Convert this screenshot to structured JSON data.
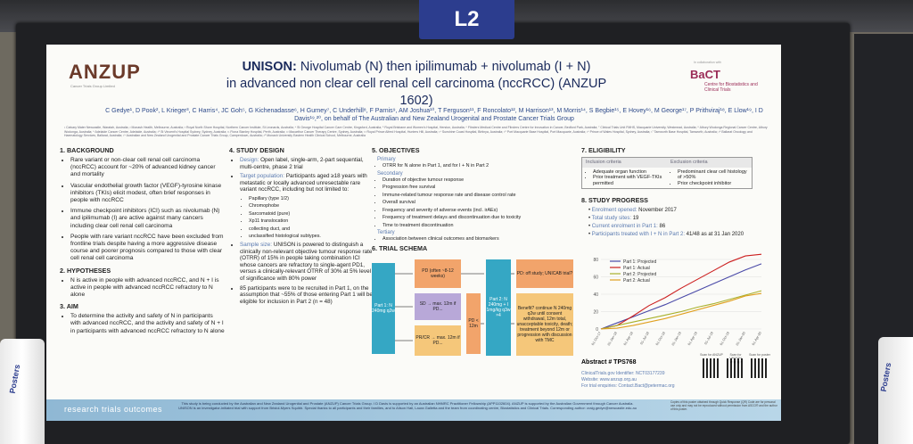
{
  "sign": "L2",
  "poster": {
    "logo_left": "ANZUP",
    "logo_left_sub": "Cancer Trials Group Limited",
    "logo_right": "BaCT",
    "logo_right_top": "In collaboration with",
    "logo_right_sub": "Centre for Biostatistics and Clinical Trials",
    "title_bold": "UNISON:",
    "title_line1": "Nivolumab (N) then ipilimumab + nivolumab (I + N)",
    "title_line2": "in advanced non clear cell renal cell carcinoma (nccRCC) (ANZUP 1602)",
    "authors": "C Gedye¹, D Pook², L Krieger³, C Harris⁴, JC Goh⁵, G Kichenadasse⁶, H Gurney⁷, C Underhill⁸, F Parnis⁹, AM Joshua¹⁰, T Ferguson¹¹, F Roncolato¹², M Harrison¹³, M Morris¹⁴, S Begbie¹⁵, E Hovey¹⁶, M George¹⁷, P Prithviraj¹⁸, E Llow¹⁹, I D Davis¹⁹,²⁰, on behalf of The Australian and New Zealand Urogenital and Prostate Cancer Trials Group",
    "affiliations": "¹ Calvary Mater Newcastle, Waratah, Australia; ² Monash Health, Melbourne, Australia; ³ Royal North Shore Hospital, Northern Cancer Institute, St Leonards, Australia; ⁴ St George Hospital Cancer Care Centre, Kingsford, Australia; ⁵ Royal Brisbane and Women's Hospital, Herston, Australia; ⁶ Flinders Medical Centre and Flinders Centre for Innovation in Cancer, Bedford Park, Australia; ⁷ Clinical Trials Unit FMHS, Macquarie University, Westmead, Australia; ⁸ Albury Wodonga Regional Cancer Centre, Albury Wodonga, Australia; ⁹ Adelaide Cancer Centre, Adelaide, Australia; ¹⁰ St Vincent's Hospital Sydney, Sydney, Australia; ¹¹ Fiona Stanley Hospital, Perth, Australia; ¹² Macarthur Cancer Therapy Centre, Sydney, Australia; ¹³ Royal Prince Alfred Hospital, Hunters Hill, Australia; ¹⁴ Sunshine Coast Hospital, Birtinya, Australia; ¹⁵ Port Macquarie Base Hospital, Port Macquarie, Australia; ¹⁶ Prince of Wales Hospital, Sydney, Australia; ¹⁷ Tamworth Base Hospital, Tamworth, Australia; ¹⁸ Ballarat Oncology and Haematology Services, Ballarat, Australia; ¹⁹ Australian and New Zealand Urogenital and Prostate Cancer Trials Group, Camperdown, Australia; ²⁰ Monash University Eastern Health Clinical School, Melbourne, Australia",
    "background": {
      "heading": "1. BACKGROUND",
      "items": [
        "Rare variant or non-clear cell renal cell carcinoma (nccRCC) account for ~20% of advanced kidney cancer and mortality",
        "Vascular endothelial growth factor (VEGF)-tyrosine kinase inhibitors (TKIs) elicit modest, often brief responses in people with nccRCC",
        "Immune checkpoint inhibitors (ICI) such as nivolumab (N) and ipilimumab (I) are active against many cancers including clear cell renal cell carcinoma",
        "People with rare variant nccRCC have been excluded from frontline trials despite having a more aggressive disease course and poorer prognosis compared to those with clear cell renal cell carcinoma"
      ]
    },
    "hypotheses": {
      "heading": "2. HYPOTHESES",
      "items": [
        "N is active in people with advanced nccRCC, and N + I is active in people with advanced nccRCC refractory to N alone"
      ]
    },
    "aim": {
      "heading": "3. AIM",
      "items": [
        "To determine the activity and safety of N in participants with advanced nccRCC, and the activity and safety of N + I in participants with advanced nccRCC refractory to N alone"
      ]
    },
    "design": {
      "heading": "4. STUDY DESIGN",
      "design_label": "Design:",
      "design_text": "Open label, single-arm, 2-part sequential, multi-centre, phase 2 trial",
      "target_label": "Target population:",
      "target_text": "Participants aged ≥18 years with metastatic or locally advanced unresectable rare variant nccRCC, including but not limited to:",
      "subtypes": [
        "Papillary (type 1/2)",
        "Chromophobe",
        "Sarcomatoid (pure)",
        "Xp11 translocation",
        "collecting duct, and",
        "unclassified histological subtypes."
      ],
      "sample_label": "Sample size:",
      "sample_text": "UNISON is powered to distinguish a clinically non-relevant objective tumour response rate (OTRR) of 15% in people taking combination ICI whose cancers are refractory to single-agent PD1, versus a clinically-relevant OTRR of 30% at 5% level of significance with 80% power",
      "recruit_text": "85 participants were to be recruited in Part 1, on the assumption that ~55% of those entering Part 1 will be eligible for inclusion in Part 2 (n = 48)"
    },
    "objectives": {
      "heading": "5. OBJECTIVES",
      "primary_label": "Primary",
      "primary": [
        "OTRR for N alone in Part 1, and for I + N in Part 2"
      ],
      "secondary_label": "Secondary",
      "secondary": [
        "Duration of objective tumour response",
        "Progression free survival",
        "Immune-related tumour response rate and disease control rate",
        "Overall survival",
        "Frequency and severity of adverse events (incl. irAEs)",
        "Frequency of treatment delays and discontinuation due to toxicity",
        "Time to treatment discontinuation"
      ],
      "tertiary_label": "Tertiary",
      "tertiary": [
        "Association between clinical outcomes and biomarkers"
      ]
    },
    "schema": {
      "heading": "6. TRIAL SCHEMA",
      "part1": "Part 1: N 240mg q2w",
      "pd": "PD (often ~8-12 weeks)",
      "sd": "SD → max. 12m if PD...",
      "prcr": "PR/CR → max. 12m if PD...",
      "pd12": "PD < 12m",
      "part2": "Part 2: N 240mg + I 1mg/kg q3w ×4",
      "offstudy": "PD: off study; UNICAB trial?",
      "benefit": "Benefit? continue N 240mg q2w until consent withdrawal, 12m total, unacceptable toxicity, death; treatment beyond 12m or progression with discussion with TMC"
    },
    "eligibility": {
      "heading": "7. ELIGIBILITY",
      "inc_head": "Inclusion criteria",
      "exc_head": "Exclusion criteria",
      "inc": [
        "Adequate organ function",
        "Prior treatment with VEGF-TKIs permitted"
      ],
      "exc": [
        "Predominant clear cell histology of >50%",
        "Prior checkpoint inhibitor"
      ]
    },
    "progress": {
      "heading": "8. STUDY PROGRESS",
      "rows": [
        {
          "k": "Enrolment opened:",
          "v": "November 2017"
        },
        {
          "k": "Total study sites:",
          "v": "19"
        },
        {
          "k": "Current enrolment in Part 1:",
          "v": "86"
        },
        {
          "k": "Participants treated with I + N in Part 2:",
          "v": "41/48 as at 31 Jan 2020"
        }
      ]
    },
    "abstract": "Abstract # TPS768",
    "links": [
      "ClinicalTrials.gov Identifier: NCT03177239",
      "Website: www.anzup.org.au",
      "For trial enquiries: Contact.Bact@petermac.org"
    ],
    "qr_labels": [
      "Scan for ANZUP",
      "Scan for UNISON webpage",
      "Scan for poster"
    ],
    "footer_tag": "research  trials  outcomes",
    "footer_note": "This study is being conducted by the Australian and New Zealand Urogenital and Prostate (ANZUP) Cancer Trials Group. I D Davis is supported by an Australian NHMRC Practitioner Fellowship (APP1102604). ANZUP is supported by the Australian Government through Cancer Australia. UNISON is an investigator-initiated trial with support from Bristol-Myers Squibb. Special thanks to all participants and their families, and to Alison Hall, Laura Galletta and the team from coordinating centre, Biostatistics and Clinical Trials. Corresponding author: craig.gedye@newcastle.edu.au",
    "footer_copy": "Copies of this poster obtained through Quick Response (QR) Code are for personal use only and may not be reproduced without permission from ASCO® and the author of this poster."
  },
  "stand_left": "Posters",
  "stand_right": "Posters",
  "chart_data": {
    "type": "line",
    "categories": [
      "01-Oct-17",
      "01-Jan-18",
      "01-Apr-18",
      "01-Jul-18",
      "01-Oct-18",
      "01-Jan-19",
      "01-Apr-19",
      "01-Jul-19",
      "01-Oct-19",
      "01-Jan-20",
      "01-Apr-20"
    ],
    "ylim": [
      0,
      80
    ],
    "yticks": [
      0,
      20,
      40,
      60,
      80
    ],
    "legend_position": "top-right",
    "series": [
      {
        "name": "Part 1: Projected",
        "color": "#4a4aa8",
        "values": [
          0,
          7,
          14,
          21,
          28,
          36,
          44,
          52,
          60,
          68,
          75
        ]
      },
      {
        "name": "Part 1: Actual",
        "color": "#cc1f1f",
        "values": [
          0,
          4,
          15,
          27,
          36,
          47,
          57,
          67,
          77,
          84,
          86
        ]
      },
      {
        "name": "Part 2: Projected",
        "color": "#a8b02a",
        "values": [
          0,
          4,
          8,
          12,
          16,
          20,
          25,
          29,
          34,
          39,
          44
        ]
      },
      {
        "name": "Part 2: Actual",
        "color": "#e0a020",
        "values": [
          0,
          1,
          4,
          8,
          12,
          17,
          22,
          27,
          32,
          38,
          41
        ]
      }
    ]
  }
}
